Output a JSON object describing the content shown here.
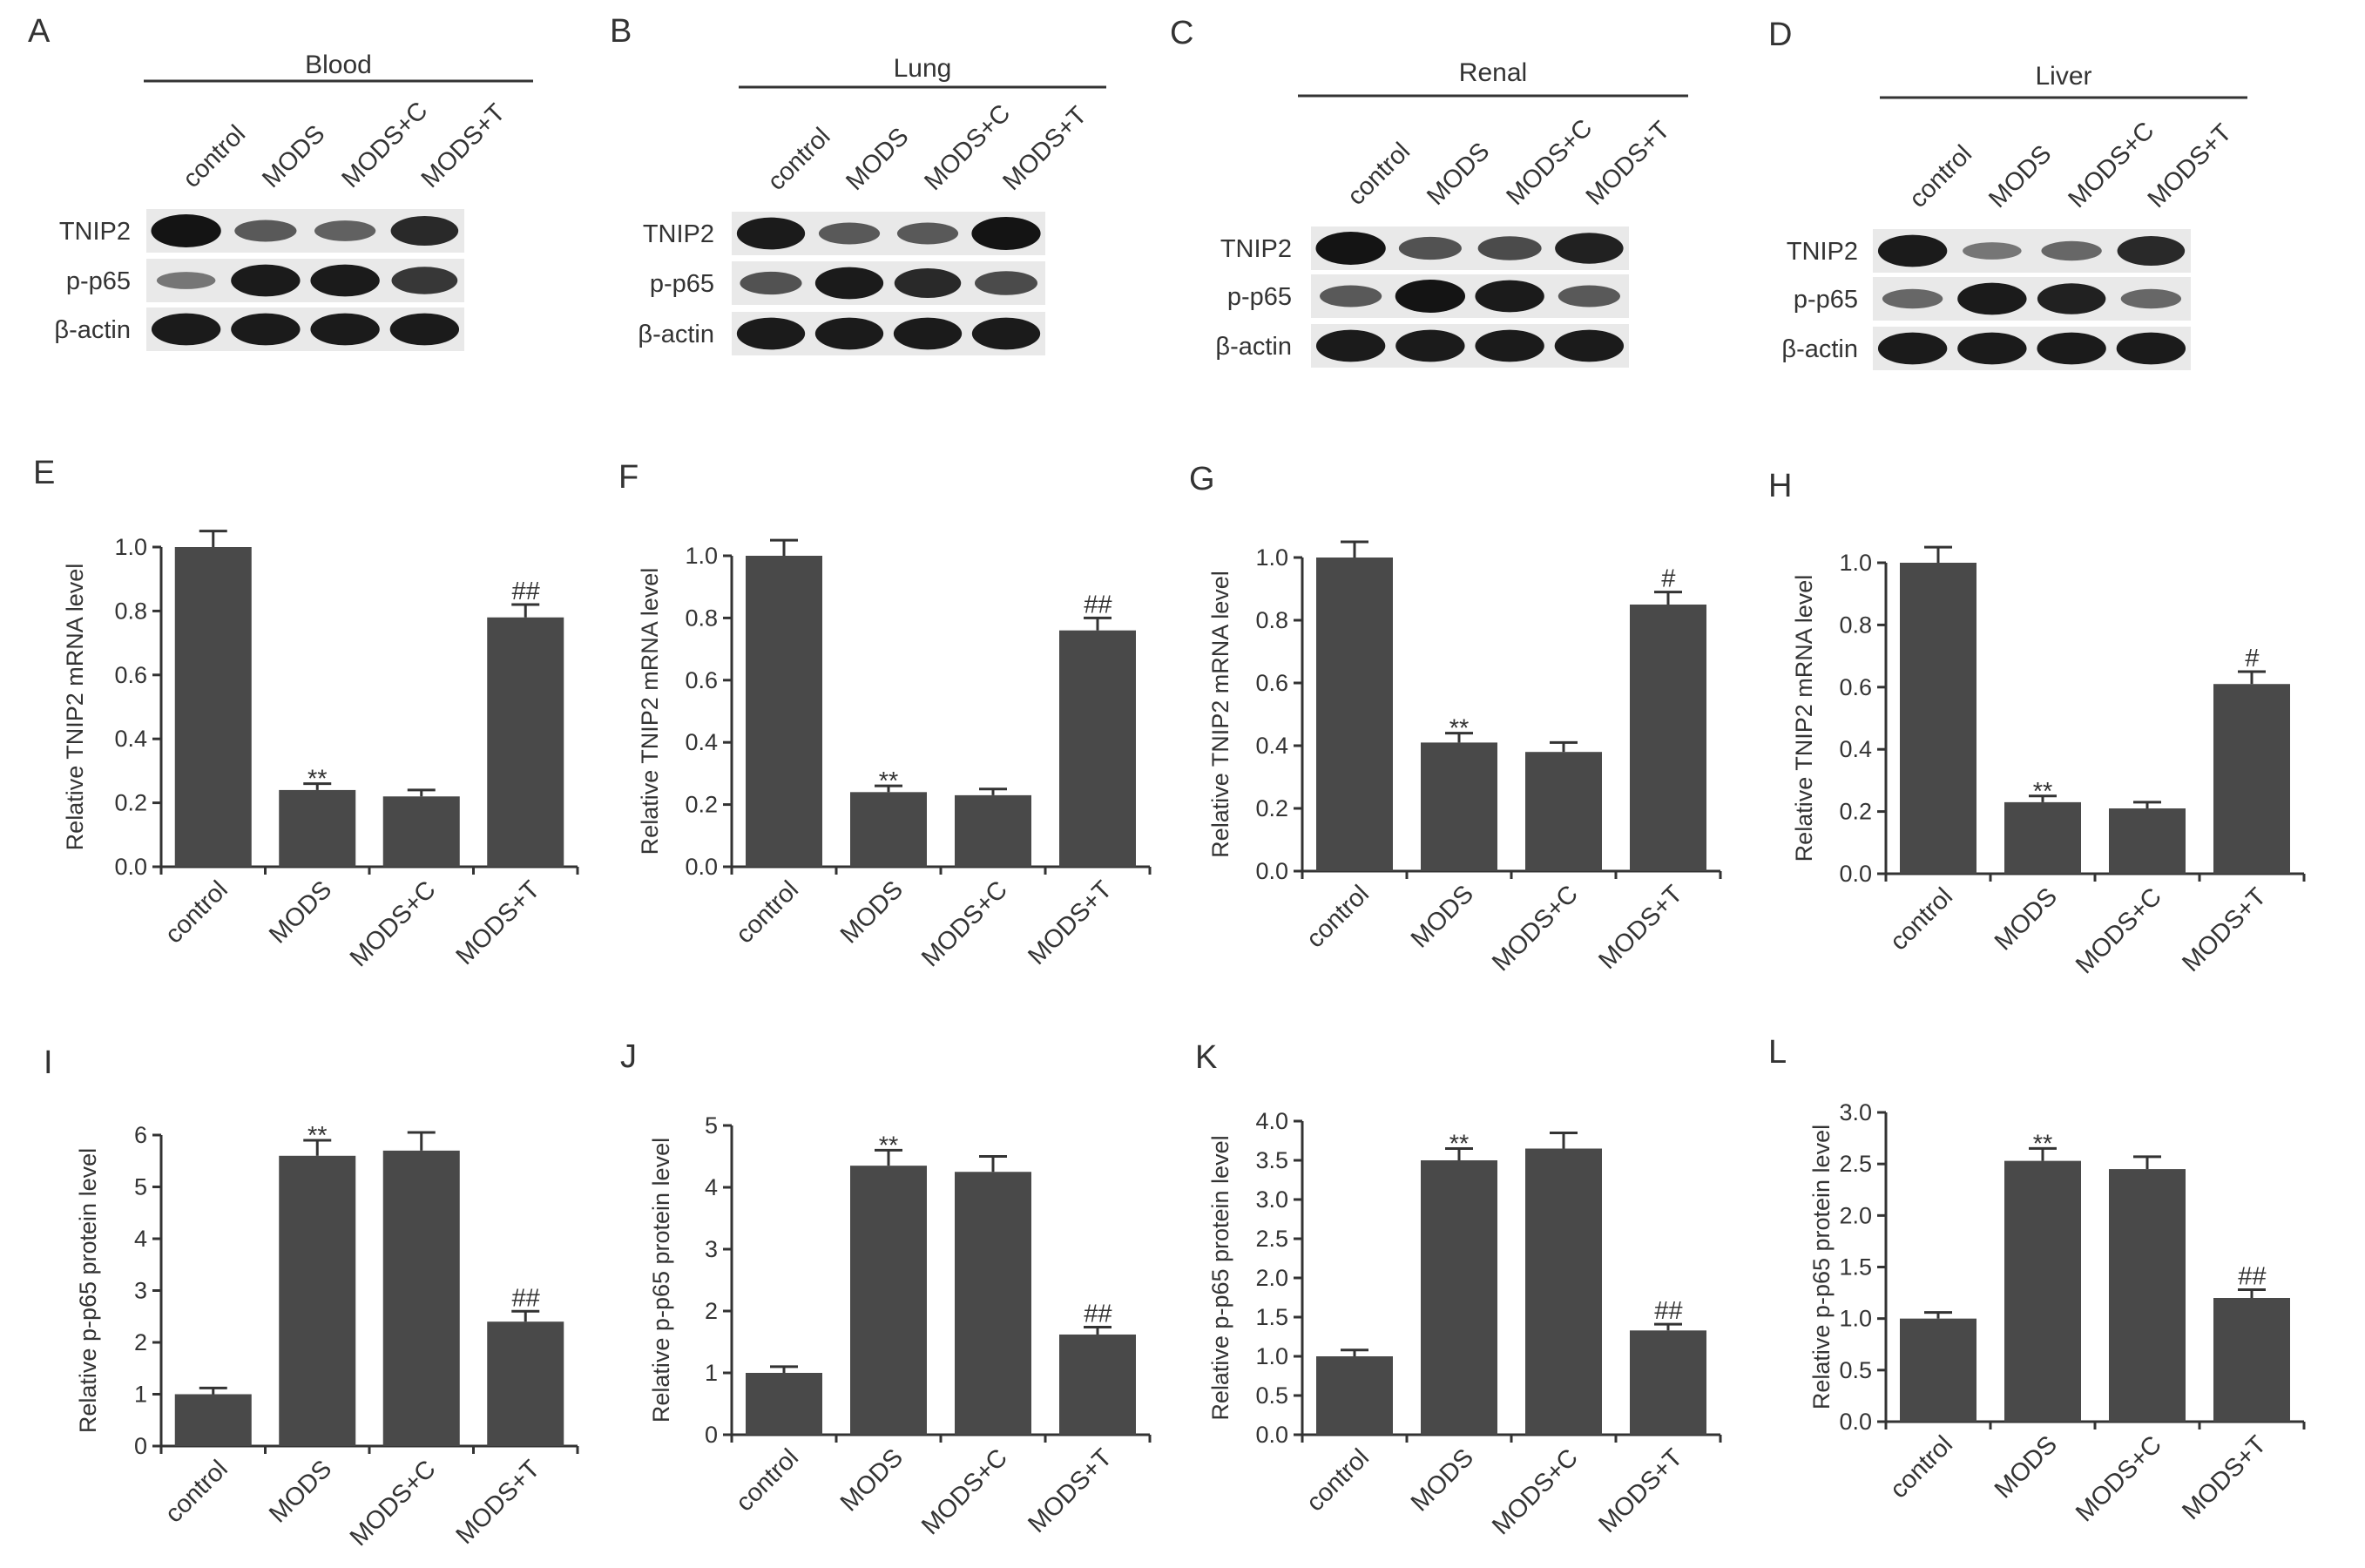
{
  "colors": {
    "bar": "#494949",
    "axis": "#333333",
    "text": "#333333",
    "blot_background": "#e9e9e9",
    "band": "#141414"
  },
  "blots": [
    {
      "letter": "A",
      "title": "Blood",
      "lanes": [
        "control",
        "MODS",
        "MODS+C",
        "MODS+T"
      ],
      "rows": [
        {
          "label": "TNIP2",
          "intensity": [
            1.0,
            0.5,
            0.45,
            0.85
          ]
        },
        {
          "label": "p-p65",
          "intensity": [
            0.3,
            0.95,
            0.95,
            0.75
          ]
        },
        {
          "label": "β-actin",
          "intensity": [
            0.95,
            0.95,
            0.95,
            0.95
          ]
        }
      ]
    },
    {
      "letter": "B",
      "title": "Lung",
      "lanes": [
        "control",
        "MODS",
        "MODS+C",
        "MODS+T"
      ],
      "rows": [
        {
          "label": "TNIP2",
          "intensity": [
            0.95,
            0.5,
            0.5,
            1.0
          ]
        },
        {
          "label": "p-p65",
          "intensity": [
            0.55,
            0.95,
            0.85,
            0.6
          ]
        },
        {
          "label": "β-actin",
          "intensity": [
            0.95,
            0.95,
            0.95,
            0.95
          ]
        }
      ]
    },
    {
      "letter": "C",
      "title": "Renal",
      "lanes": [
        "control",
        "MODS",
        "MODS+C",
        "MODS+T"
      ],
      "rows": [
        {
          "label": "TNIP2",
          "intensity": [
            1.0,
            0.55,
            0.6,
            0.9
          ]
        },
        {
          "label": "p-p65",
          "intensity": [
            0.5,
            1.0,
            0.95,
            0.5
          ]
        },
        {
          "label": "β-actin",
          "intensity": [
            0.95,
            0.95,
            0.95,
            0.95
          ]
        }
      ]
    },
    {
      "letter": "D",
      "title": "Liver",
      "lanes": [
        "control",
        "MODS",
        "MODS+C",
        "MODS+T"
      ],
      "rows": [
        {
          "label": "TNIP2",
          "intensity": [
            0.95,
            0.3,
            0.4,
            0.85
          ]
        },
        {
          "label": "p-p65",
          "intensity": [
            0.4,
            0.95,
            0.9,
            0.4
          ]
        },
        {
          "label": "β-actin",
          "intensity": [
            0.95,
            0.95,
            0.95,
            0.95
          ]
        }
      ]
    }
  ],
  "chart_data": [
    {
      "letter": "E",
      "type": "bar",
      "categories": [
        "control",
        "MODS",
        "MODS+C",
        "MODS+T"
      ],
      "values": [
        1.0,
        0.24,
        0.22,
        0.78
      ],
      "errors": [
        0.05,
        0.02,
        0.02,
        0.04
      ],
      "significance": [
        "",
        "**",
        "",
        "##"
      ],
      "ylabel": "Relative TNIP2 mRNA level",
      "ylim": [
        0,
        1.0
      ],
      "yticks": [
        "0.0",
        "0.2",
        "0.4",
        "0.6",
        "0.8",
        "1.0"
      ],
      "grid": false,
      "legend": "none"
    },
    {
      "letter": "F",
      "type": "bar",
      "categories": [
        "control",
        "MODS",
        "MODS+C",
        "MODS+T"
      ],
      "values": [
        1.0,
        0.24,
        0.23,
        0.76
      ],
      "errors": [
        0.05,
        0.02,
        0.02,
        0.04
      ],
      "significance": [
        "",
        "**",
        "",
        "##"
      ],
      "ylabel": "Relative TNIP2 mRNA level",
      "ylim": [
        0,
        1.0
      ],
      "yticks": [
        "0.0",
        "0.2",
        "0.4",
        "0.6",
        "0.8",
        "1.0"
      ],
      "grid": false,
      "legend": "none"
    },
    {
      "letter": "G",
      "type": "bar",
      "categories": [
        "control",
        "MODS",
        "MODS+C",
        "MODS+T"
      ],
      "values": [
        1.0,
        0.41,
        0.38,
        0.85
      ],
      "errors": [
        0.05,
        0.03,
        0.03,
        0.04
      ],
      "significance": [
        "",
        "**",
        "",
        "#"
      ],
      "ylabel": "Relative TNIP2 mRNA level",
      "ylim": [
        0,
        1.0
      ],
      "yticks": [
        "0.0",
        "0.2",
        "0.4",
        "0.6",
        "0.8",
        "1.0"
      ],
      "grid": false,
      "legend": "none"
    },
    {
      "letter": "H",
      "type": "bar",
      "categories": [
        "control",
        "MODS",
        "MODS+C",
        "MODS+T"
      ],
      "values": [
        1.0,
        0.23,
        0.21,
        0.61
      ],
      "errors": [
        0.05,
        0.02,
        0.02,
        0.04
      ],
      "significance": [
        "",
        "**",
        "",
        "#"
      ],
      "ylabel": "Relative TNIP2 mRNA level",
      "ylim": [
        0,
        1.0
      ],
      "yticks": [
        "0.0",
        "0.2",
        "0.4",
        "0.6",
        "0.8",
        "1.0"
      ],
      "grid": false,
      "legend": "none"
    },
    {
      "letter": "I",
      "type": "bar",
      "categories": [
        "control",
        "MODS",
        "MODS+C",
        "MODS+T"
      ],
      "values": [
        1.0,
        5.6,
        5.7,
        2.4
      ],
      "errors": [
        0.12,
        0.3,
        0.35,
        0.2
      ],
      "significance": [
        "",
        "**",
        "",
        "##"
      ],
      "ylabel": "Relative p-p65 protein level",
      "ylim": [
        0,
        6
      ],
      "yticks": [
        "0",
        "1",
        "2",
        "3",
        "4",
        "5",
        "6"
      ],
      "grid": false,
      "legend": "none"
    },
    {
      "letter": "J",
      "type": "bar",
      "categories": [
        "control",
        "MODS",
        "MODS+C",
        "MODS+T"
      ],
      "values": [
        1.0,
        4.35,
        4.25,
        1.62
      ],
      "errors": [
        0.1,
        0.25,
        0.25,
        0.12
      ],
      "significance": [
        "",
        "**",
        "",
        "##"
      ],
      "ylabel": "Relative p-p65 protein level",
      "ylim": [
        0,
        5
      ],
      "yticks": [
        "0",
        "1",
        "2",
        "3",
        "4",
        "5"
      ],
      "grid": false,
      "legend": "none"
    },
    {
      "letter": "K",
      "type": "bar",
      "categories": [
        "control",
        "MODS",
        "MODS+C",
        "MODS+T"
      ],
      "values": [
        1.0,
        3.5,
        3.65,
        1.33
      ],
      "errors": [
        0.08,
        0.15,
        0.2,
        0.08
      ],
      "significance": [
        "",
        "**",
        "",
        "##"
      ],
      "ylabel": "Relative p-p65 protein level",
      "ylim": [
        0,
        4.0
      ],
      "yticks": [
        "0.0",
        "0.5",
        "1.0",
        "1.5",
        "2.0",
        "2.5",
        "3.0",
        "3.5",
        "4.0"
      ],
      "grid": false,
      "legend": "none"
    },
    {
      "letter": "L",
      "type": "bar",
      "categories": [
        "control",
        "MODS",
        "MODS+C",
        "MODS+T"
      ],
      "values": [
        1.0,
        2.53,
        2.45,
        1.2
      ],
      "errors": [
        0.06,
        0.12,
        0.12,
        0.08
      ],
      "significance": [
        "",
        "**",
        "",
        "##"
      ],
      "ylabel": "Relative p-p65 protein level",
      "ylim": [
        0,
        3.0
      ],
      "yticks": [
        "0.0",
        "0.5",
        "1.0",
        "1.5",
        "2.0",
        "2.5",
        "3.0"
      ],
      "grid": false,
      "legend": "none"
    }
  ]
}
